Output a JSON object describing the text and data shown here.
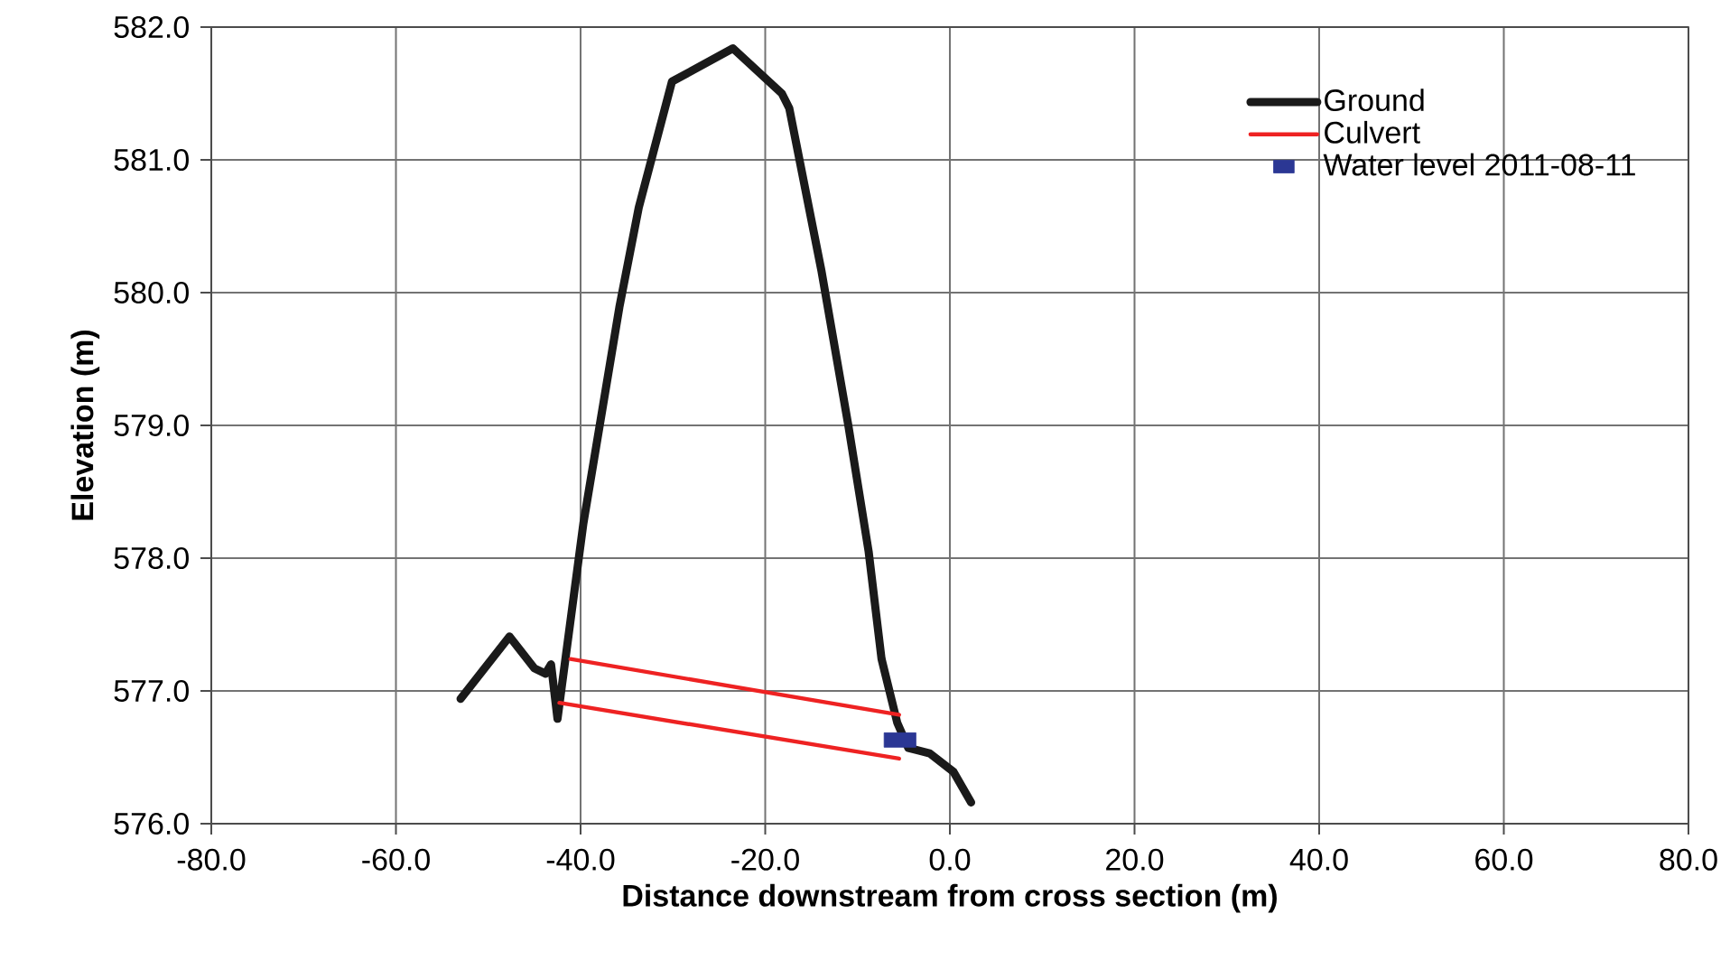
{
  "chart_data": {
    "type": "line",
    "xlabel": "Distance downstream from cross section (m)",
    "ylabel": "Elevation (m)",
    "xlim": [
      -80,
      80
    ],
    "xticks": [
      {
        "value": -80,
        "label": "-80.0"
      },
      {
        "value": -60,
        "label": "-60.0"
      },
      {
        "value": -40,
        "label": "-40.0"
      },
      {
        "value": -20,
        "label": "-20.0"
      },
      {
        "value": 0,
        "label": "0.0"
      },
      {
        "value": 20,
        "label": "20.0"
      },
      {
        "value": 40,
        "label": "40.0"
      },
      {
        "value": 60,
        "label": "60.0"
      },
      {
        "value": 80,
        "label": "80.0"
      }
    ],
    "ylim": [
      576,
      582
    ],
    "yticks": [
      {
        "value": 576,
        "label": "576.0"
      },
      {
        "value": 577,
        "label": "577.0"
      },
      {
        "value": 578,
        "label": "578.0"
      },
      {
        "value": 579,
        "label": "579.0"
      },
      {
        "value": 580,
        "label": "580.0"
      },
      {
        "value": 581,
        "label": "581.0"
      },
      {
        "value": 582,
        "label": "582.0"
      }
    ],
    "grid": true,
    "legend": "top right",
    "series": [
      {
        "name": "Ground",
        "color": "#1a1a1a",
        "x": [
          -53.0,
          -47.7,
          -45.0,
          -43.8,
          -43.2,
          -42.5,
          -39.7,
          -35.8,
          -33.7,
          -30.1,
          -23.5,
          -18.2,
          -17.4,
          -13.9,
          -11.0,
          -8.8,
          -7.4,
          -5.7,
          -4.5,
          -2.2,
          0.4,
          2.3
        ],
        "values": [
          576.94,
          577.41,
          577.17,
          577.13,
          577.2,
          576.79,
          578.26,
          579.89,
          580.64,
          581.59,
          581.84,
          581.5,
          581.39,
          580.16,
          579.0,
          578.05,
          577.24,
          576.76,
          576.57,
          576.53,
          576.39,
          576.16
        ]
      },
      {
        "name": "Culvert",
        "color": "#ee2222",
        "x": [
          -41.1,
          -5.5
        ],
        "values": [
          577.24,
          576.82
        ]
      },
      {
        "color": "#ee2222",
        "x": [
          -42.3,
          -5.5
        ],
        "values": [
          576.91,
          576.49
        ]
      },
      {
        "name": "Water level 2011-08-11",
        "type": "scatter",
        "marker": "square",
        "color": "#2b3794",
        "x": [
          -5.4
        ],
        "values": [
          576.63
        ]
      }
    ]
  }
}
